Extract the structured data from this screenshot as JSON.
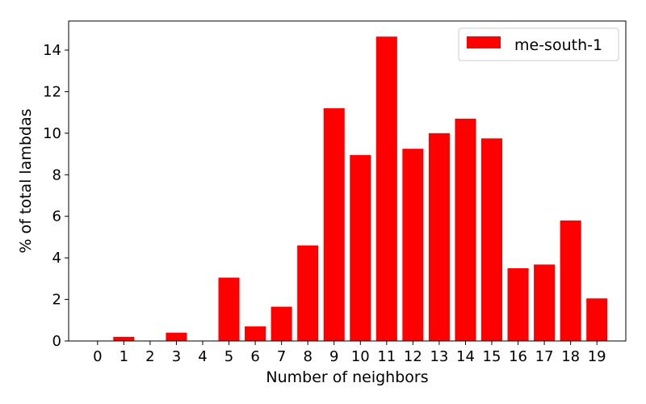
{
  "chart_data": {
    "type": "bar",
    "categories": [
      "0",
      "1",
      "2",
      "3",
      "4",
      "5",
      "6",
      "7",
      "8",
      "9",
      "10",
      "11",
      "12",
      "13",
      "14",
      "15",
      "16",
      "17",
      "18",
      "19"
    ],
    "series": [
      {
        "name": "me-south-1",
        "color": "#ff0000",
        "values": [
          0,
          0.2,
          0,
          0.4,
          0,
          3.05,
          0.7,
          1.65,
          4.6,
          11.2,
          8.95,
          14.65,
          9.25,
          10.0,
          10.7,
          9.75,
          3.5,
          3.68,
          5.8,
          2.05
        ]
      }
    ],
    "xlabel": "Number of neighbors",
    "ylabel": "% of total lambdas",
    "ylim": [
      0,
      15.4
    ],
    "yticks": [
      0,
      2,
      4,
      6,
      8,
      10,
      12,
      14
    ],
    "grid": false,
    "legend_position": "top-right"
  }
}
